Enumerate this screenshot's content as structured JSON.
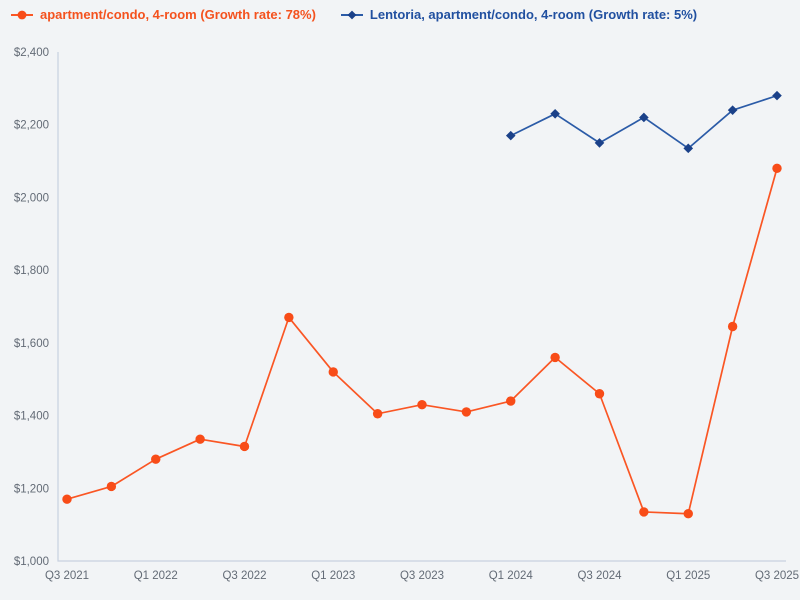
{
  "legend": [
    {
      "label": "apartment/condo, 4-room (Growth rate: 78%)",
      "color": "#f4521e",
      "marker": "circle"
    },
    {
      "label": "Lentoria, apartment/condo, 4-room (Growth rate: 5%)",
      "color": "#2150a0",
      "marker": "diamond"
    }
  ],
  "chart_data": {
    "type": "line",
    "title": "",
    "xlabel": "",
    "ylabel": "",
    "categories": [
      "Q3 2021",
      "Q4 2021",
      "Q1 2022",
      "Q2 2022",
      "Q3 2022",
      "Q4 2022",
      "Q1 2023",
      "Q2 2023",
      "Q3 2023",
      "Q4 2023",
      "Q1 2024",
      "Q2 2024",
      "Q3 2024",
      "Q4 2024",
      "Q1 2025",
      "Q2 2025",
      "Q3 2025"
    ],
    "x_tick_every": 2,
    "x_tick_labels_shown": [
      "Q3 2021",
      "Q1 2022",
      "Q3 2022",
      "Q1 2023",
      "Q3 2023",
      "Q1 2024",
      "Q3 2024",
      "Q1 2025",
      "Q3 2025"
    ],
    "ylim": [
      1000,
      2400
    ],
    "y_tick_step": 200,
    "y_tick_prefix": "$",
    "grid": false,
    "legend_position": "top-left",
    "series": [
      {
        "name": "apartment/condo, 4-room (Growth rate: 78%)",
        "marker": "circle",
        "line_color": "#fa5624",
        "marker_color": "#f84c18",
        "values": [
          1170,
          1205,
          1280,
          1335,
          1315,
          1670,
          1520,
          1405,
          1430,
          1410,
          1440,
          1560,
          1460,
          1135,
          1130,
          1645,
          2080
        ]
      },
      {
        "name": "Lentoria, apartment/condo, 4-room (Growth rate: 5%)",
        "marker": "diamond",
        "line_color": "#2b5ba7",
        "marker_color": "#1b4189",
        "values": [
          null,
          null,
          null,
          null,
          null,
          null,
          null,
          null,
          null,
          null,
          2170,
          2230,
          2150,
          2220,
          2135,
          2240,
          2280
        ]
      }
    ]
  },
  "colors": {
    "background": "#f2f4f6",
    "axis_line": "#c8d1e0",
    "tick_text": "#636b76"
  }
}
